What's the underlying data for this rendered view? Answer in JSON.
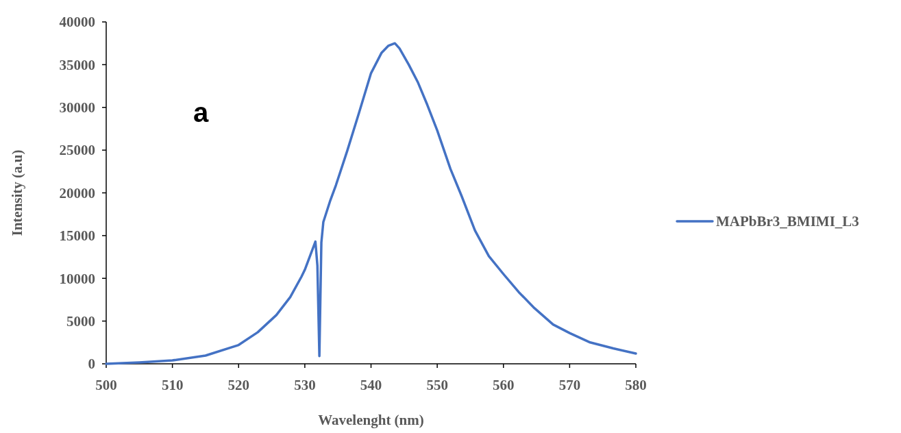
{
  "chart_data": {
    "type": "line",
    "xlabel": "Wavelenght (nm)",
    "ylabel": "Intensity (a.u)",
    "annotations": [
      "a"
    ],
    "legend": "right",
    "grid": false,
    "xlim": [
      500,
      580
    ],
    "xticks": [
      500,
      510,
      520,
      530,
      540,
      550,
      560,
      570,
      580
    ],
    "ylim": [
      0,
      40000
    ],
    "yticks": [
      0,
      5000,
      10000,
      15000,
      20000,
      25000,
      30000,
      35000,
      40000
    ],
    "series": [
      {
        "name": "MAPbBr3_BMIMI_L3",
        "color": "#4472c4",
        "x": [
          500,
          505,
          510,
          515,
          520,
          522.9,
          525.7,
          527.8,
          529.5,
          530,
          531.6,
          531.9,
          532.2,
          532.5,
          532.8,
          533.8,
          534.7,
          536.4,
          538.2,
          540,
          541.6,
          542.6,
          543.6,
          544.3,
          545.7,
          547.1,
          548.5,
          550,
          552,
          553.7,
          555.7,
          557.8,
          560,
          562.3,
          564.7,
          567.5,
          570,
          573.1,
          576.6,
          580
        ],
        "values": [
          0,
          160,
          400,
          960,
          2200,
          3700,
          5700,
          7800,
          10200,
          11000,
          14300,
          11500,
          900,
          14200,
          16600,
          19000,
          20900,
          24900,
          29400,
          34000,
          36400,
          37200,
          37500,
          36900,
          35000,
          32900,
          30300,
          27300,
          22800,
          19600,
          15600,
          12600,
          10500,
          8400,
          6500,
          4600,
          3600,
          2500,
          1800,
          1200
        ]
      }
    ]
  }
}
